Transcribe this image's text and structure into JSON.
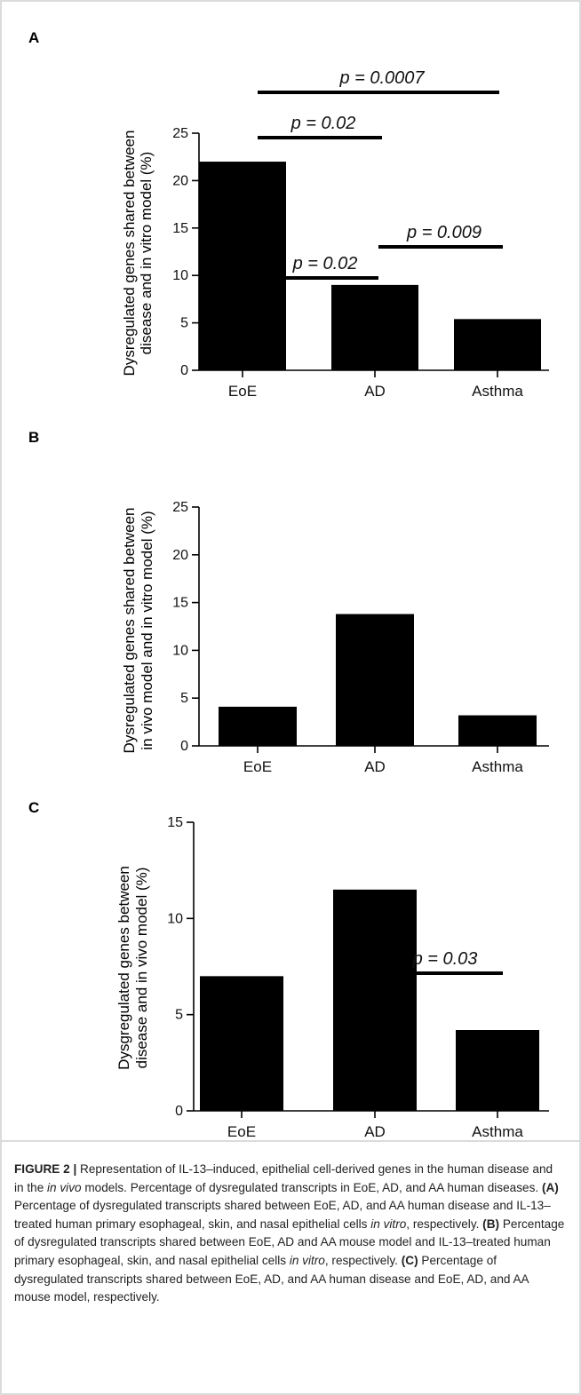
{
  "frame": {
    "border_color": "#cfcfcf",
    "divider_color": "#cfcfcf"
  },
  "colors": {
    "bar": "#000000",
    "axis": "#000000",
    "text": "#111111"
  },
  "chart_data": [
    {
      "panel": "A",
      "type": "bar",
      "categories": [
        "EoE",
        "AD",
        "Asthma"
      ],
      "values": [
        22,
        9,
        5.4
      ],
      "ylabel_lines": [
        "Dysregulated genes shared  between",
        "disease and in vitro model (%)"
      ],
      "ylim": [
        0,
        25
      ],
      "yticks": [
        0,
        5,
        10,
        15,
        20,
        25
      ],
      "significance": [
        {
          "from": "EoE",
          "to": "AD",
          "label": "p = 0.02"
        },
        {
          "from": "EoE",
          "to": "Asthma",
          "label": "p = 0.0007"
        }
      ]
    },
    {
      "panel": "B",
      "type": "bar",
      "categories": [
        "EoE",
        "AD",
        "Asthma"
      ],
      "values": [
        4.1,
        13.8,
        3.2
      ],
      "ylabel_lines": [
        "Dysregulated genes shared between",
        "in vivo model and in vitro model (%)"
      ],
      "ylim": [
        0,
        25
      ],
      "yticks": [
        0,
        5,
        10,
        15,
        20,
        25
      ],
      "significance": [
        {
          "from": "EoE",
          "to": "AD",
          "label": "p = 0.02"
        },
        {
          "from": "AD",
          "to": "Asthma",
          "label": "p = 0.009"
        }
      ]
    },
    {
      "panel": "C",
      "type": "bar",
      "categories": [
        "EoE",
        "AD",
        "Asthma"
      ],
      "values": [
        7,
        11.5,
        4.2
      ],
      "ylabel_lines": [
        "Dysgregulated genes between",
        "disease and in vivo model (%)"
      ],
      "ylim": [
        0,
        15
      ],
      "yticks": [
        0,
        5,
        10,
        15
      ],
      "significance": [
        {
          "from": "AD",
          "to": "Asthma",
          "label": "p = 0.03"
        }
      ]
    }
  ],
  "caption": {
    "label": "FIGURE 2 |",
    "part1": " Representation of IL-13–induced, epithelial cell-derived genes in the human disease and in the ",
    "em1": "in vivo",
    "part2": " models. Percentage of dysregulated transcripts in EoE, AD, and AA human diseases. ",
    "labelA": "(A)",
    "part3": " Percentage of dysregulated transcripts shared between EoE, AD, and AA human disease and IL-13–treated human primary esophageal, skin, and nasal epithelial cells ",
    "em2": "in vitro",
    "part4": ", respectively. ",
    "labelB": "(B)",
    "part5": " Percentage of dysregulated transcripts shared between EoE, AD and AA mouse model and IL-13–treated human primary esophageal, skin, and nasal epithelial cells ",
    "em3": "in vitro",
    "part6": ", respectively. ",
    "labelC": "(C)",
    "part7": " Percentage of dysregulated transcripts shared between EoE, AD, and AA human disease and EoE, AD, and AA mouse model, respectively."
  }
}
